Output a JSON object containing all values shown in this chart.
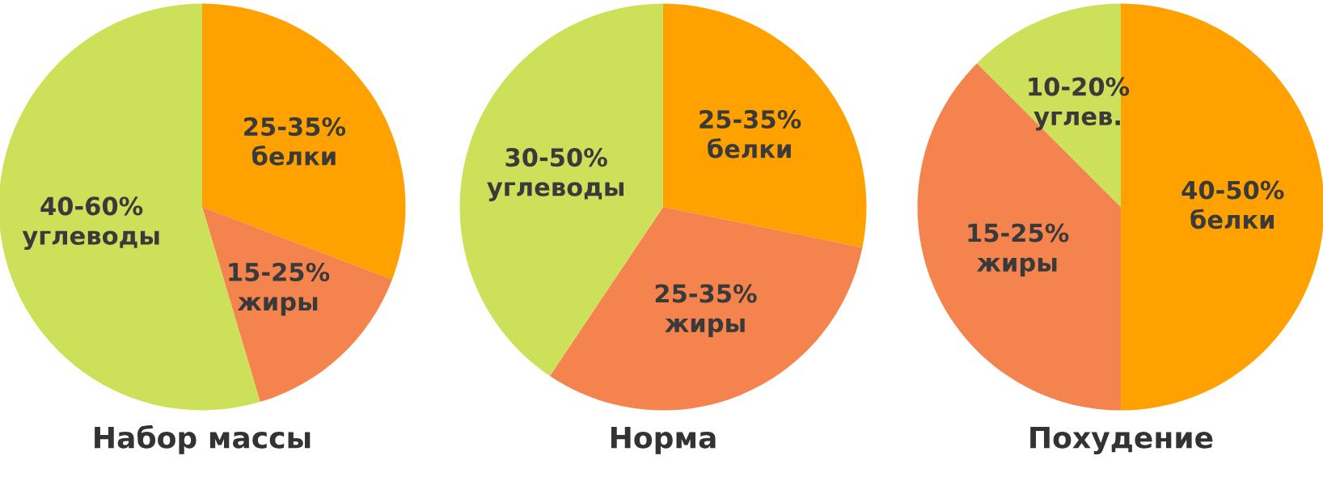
{
  "chart_data": [
    {
      "type": "pie",
      "title": "Набор массы",
      "categories": [
        "25-35%\nбелки",
        "15-25%\nжиры",
        "40-60%\nуглеводы"
      ],
      "values": [
        30.8,
        14.6,
        54.6
      ],
      "colors": [
        "#ffa200",
        "#f5834e",
        "#cde05a"
      ]
    },
    {
      "type": "pie",
      "title": "Норма",
      "categories": [
        "25-35%\nбелки",
        "25-35%\nжиры",
        "30-50%\nуглеводы"
      ],
      "values": [
        28.2,
        31.2,
        40.6
      ],
      "colors": [
        "#ffa200",
        "#f5834e",
        "#cde05a"
      ]
    },
    {
      "type": "pie",
      "title": "Похудение",
      "categories": [
        "40-50%\nбелки",
        "15-25%\nжиры",
        "10-20%\nуглев."
      ],
      "values": [
        50,
        37.5,
        12.5
      ],
      "colors": [
        "#ffa200",
        "#f5834e",
        "#cde05a"
      ]
    }
  ]
}
